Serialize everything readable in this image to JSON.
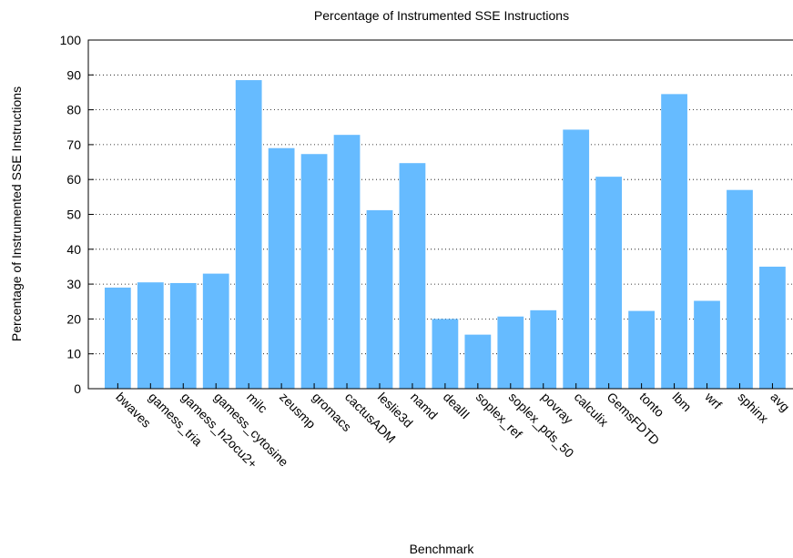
{
  "chart_data": {
    "type": "bar",
    "title": "Percentage of Instrumented SSE Instructions",
    "xlabel": "Benchmark",
    "ylabel": "Percentage of Instrumented SSE Instructions",
    "ylim": [
      0,
      100
    ],
    "yticks": [
      0,
      10,
      20,
      30,
      40,
      50,
      60,
      70,
      80,
      90,
      100
    ],
    "grid": "horizontal-dotted",
    "bar_color": "#66bbff",
    "categories": [
      "bwaves",
      "gamess_tria",
      "gamess_h2ocu2+",
      "gamess_cytosine",
      "milc",
      "zeusmp",
      "gromacs",
      "cactusADM",
      "leslie3d",
      "namd",
      "dealII",
      "soplex_ref",
      "soplex_pds_50",
      "povray",
      "calculix",
      "GemsFDTD",
      "tonto",
      "lbm",
      "wrf",
      "sphinx",
      "avg"
    ],
    "values": [
      29.0,
      30.5,
      30.3,
      33.0,
      88.5,
      69.0,
      67.3,
      72.8,
      51.2,
      64.7,
      20.0,
      15.5,
      20.7,
      22.5,
      74.3,
      60.8,
      22.3,
      84.5,
      25.2,
      57.0,
      35.0
    ]
  }
}
